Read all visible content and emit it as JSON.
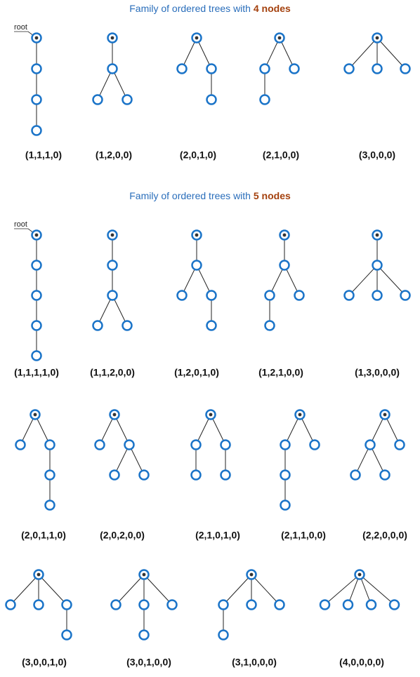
{
  "sections": [
    {
      "title_prefix": "Family of ordered trees with ",
      "title_emphasis": "4 nodes",
      "root_label": "root",
      "trees": [
        "(1,1,1,0)",
        "(1,2,0,0)",
        "(2,0,1,0)",
        "(2,1,0,0)",
        "(3,0,0,0)"
      ]
    },
    {
      "title_prefix": "Family of ordered trees with ",
      "title_emphasis": "5 nodes",
      "root_label": "root",
      "trees": [
        "(1,1,1,1,0)",
        "(1,1,2,0,0)",
        "(1,2,0,1,0)",
        "(1,2,1,0,0)",
        "(1,3,0,0,0)",
        "(2,0,1,1,0)",
        "(2,0,2,0,0)",
        "(2,1,0,1,0)",
        "(2,1,1,0,0)",
        "(2,2,0,0,0)",
        "(3,0,0,1,0)",
        "(3,0,1,0,0)",
        "(3,1,0,0,0)",
        "(4,0,0,0,0)"
      ]
    }
  ]
}
